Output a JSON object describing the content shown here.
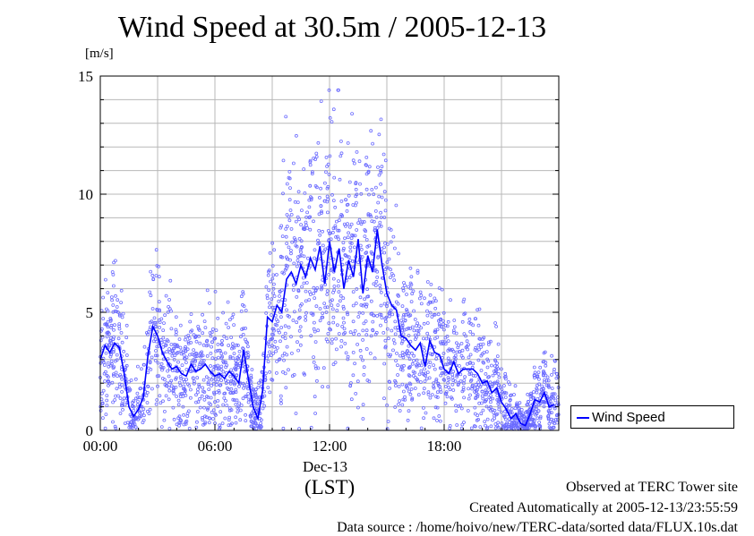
{
  "chart_data": {
    "type": "scatter",
    "title": "Wind Speed at 30.5m / 2005-12-13",
    "ylabel": "[m/s]",
    "xlabel": "(LST)",
    "date_label": "Dec-13",
    "x_unit": "hours",
    "xlim": [
      0,
      24
    ],
    "ylim": [
      0,
      15
    ],
    "x_ticks": [
      {
        "value": 0,
        "label": "00:00"
      },
      {
        "value": 6,
        "label": "06:00"
      },
      {
        "value": 12,
        "label": "12:00"
      },
      {
        "value": 18,
        "label": "18:00"
      }
    ],
    "y_ticks": [
      {
        "value": 0,
        "label": "0"
      },
      {
        "value": 5,
        "label": "5"
      },
      {
        "value": 10,
        "label": "10"
      },
      {
        "value": 15,
        "label": "15"
      }
    ],
    "grid": true,
    "legend_position": "right-bottom",
    "series": [
      {
        "name": "Wind Speed",
        "style": "line",
        "color": "#0000ff",
        "x": [
          0.0,
          0.25,
          0.5,
          0.75,
          1.0,
          1.25,
          1.5,
          1.75,
          2.0,
          2.25,
          2.5,
          2.75,
          3.0,
          3.25,
          3.5,
          3.75,
          4.0,
          4.25,
          4.5,
          4.75,
          5.0,
          5.25,
          5.5,
          5.75,
          6.0,
          6.25,
          6.5,
          6.75,
          7.0,
          7.25,
          7.5,
          7.75,
          8.0,
          8.25,
          8.5,
          8.75,
          9.0,
          9.25,
          9.5,
          9.75,
          10.0,
          10.25,
          10.5,
          10.75,
          11.0,
          11.25,
          11.5,
          11.75,
          12.0,
          12.25,
          12.5,
          12.75,
          13.0,
          13.25,
          13.5,
          13.75,
          14.0,
          14.25,
          14.5,
          14.75,
          15.0,
          15.25,
          15.5,
          15.75,
          16.0,
          16.25,
          16.5,
          16.75,
          17.0,
          17.25,
          17.5,
          17.75,
          18.0,
          18.25,
          18.5,
          18.75,
          19.0,
          19.25,
          19.5,
          19.75,
          20.0,
          20.25,
          20.5,
          20.75,
          21.0,
          21.25,
          21.5,
          21.75,
          22.0,
          22.25,
          22.5,
          22.75,
          23.0,
          23.25,
          23.5,
          23.75
        ],
        "values": [
          3.0,
          3.6,
          3.3,
          3.7,
          3.5,
          2.4,
          1.0,
          0.6,
          0.9,
          1.4,
          3.2,
          4.4,
          4.0,
          3.3,
          2.9,
          2.6,
          2.7,
          2.4,
          2.3,
          2.8,
          2.5,
          2.6,
          2.8,
          2.5,
          2.3,
          2.4,
          2.2,
          2.5,
          2.3,
          2.0,
          3.4,
          2.2,
          1.0,
          0.5,
          1.7,
          4.8,
          4.6,
          5.3,
          5.0,
          6.4,
          6.7,
          6.2,
          7.0,
          6.5,
          7.3,
          6.8,
          7.8,
          6.2,
          8.0,
          6.7,
          7.7,
          6.0,
          7.2,
          6.5,
          8.1,
          5.8,
          7.4,
          6.7,
          8.5,
          7.0,
          5.8,
          5.3,
          5.1,
          4.0,
          3.9,
          3.6,
          3.4,
          3.7,
          2.7,
          3.8,
          3.3,
          3.2,
          2.6,
          2.4,
          2.9,
          2.4,
          2.6,
          2.6,
          2.6,
          2.4,
          2.0,
          2.1,
          1.6,
          1.8,
          1.2,
          0.9,
          0.5,
          0.7,
          0.3,
          0.2,
          0.7,
          1.3,
          1.2,
          1.6,
          1.0,
          1.1
        ]
      }
    ]
  },
  "footer": {
    "line1": "Observed at TERC Tower site",
    "line2": "Created Automatically at 2005-12-13/23:55:59",
    "line3": "Data source : /home/hoivo/new/TERC-data/sorted  data/FLUX.10s.dat"
  }
}
